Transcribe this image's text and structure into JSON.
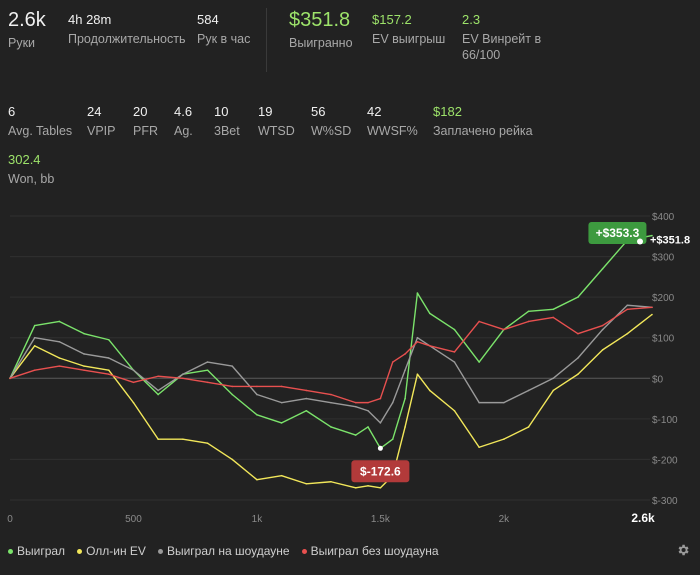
{
  "stats_row1": [
    {
      "id": "hands",
      "value": "2.6k",
      "label": "Руки",
      "style": "big"
    },
    {
      "id": "duration",
      "value": "4h 28m",
      "label": "Продолжительность",
      "style": "normal"
    },
    {
      "id": "hands_per_hour",
      "value": "584",
      "label": "Рук в час",
      "style": "normal"
    },
    {
      "id": "won",
      "value": "$351.8",
      "label": "Выигранно",
      "style": "greenbig"
    },
    {
      "id": "ev_won",
      "value": "$157.2",
      "label": "EV выигрыш",
      "style": "green"
    },
    {
      "id": "ev_winrate",
      "value": "2.3",
      "label": "EV Винрейт в 66/100",
      "style": "green"
    }
  ],
  "stats_row2": [
    {
      "id": "avg_tables",
      "value": "6",
      "label": "Avg. Tables",
      "style": "normal"
    },
    {
      "id": "vpip",
      "value": "24",
      "label": "VPIP",
      "style": "normal"
    },
    {
      "id": "pfr",
      "value": "20",
      "label": "PFR",
      "style": "normal"
    },
    {
      "id": "ag",
      "value": "4.6",
      "label": "Ag.",
      "style": "normal"
    },
    {
      "id": "threebet",
      "value": "10",
      "label": "3Bet",
      "style": "normal"
    },
    {
      "id": "wtsd",
      "value": "19",
      "label": "WTSD",
      "style": "normal"
    },
    {
      "id": "wsd",
      "value": "56",
      "label": "W%SD",
      "style": "normal"
    },
    {
      "id": "wwsf",
      "value": "42",
      "label": "WWSF%",
      "style": "normal"
    },
    {
      "id": "rake",
      "value": "$182",
      "label": "Заплачено рейка",
      "style": "green"
    }
  ],
  "stats_row3": [
    {
      "id": "won_bb",
      "value": "302.4",
      "label": "Won, bb",
      "style": "green"
    }
  ],
  "colors": {
    "won": "#7be36b",
    "allin_ev": "#f2e75a",
    "showdown": "#9a9a9a",
    "nonshowdown": "#e8504f",
    "max_badge": "#3d9a3f",
    "min_badge": "#b23a3a"
  },
  "chart_data": {
    "type": "line",
    "xlim": [
      0,
      2600
    ],
    "ylim": [
      -300,
      400
    ],
    "x_ticks": [
      0,
      500,
      1000,
      1500,
      2000
    ],
    "x_tick_labels": [
      "0",
      "500",
      "1k",
      "1.5k",
      "2k"
    ],
    "x_end_label": "2.6k",
    "y_ticks": [
      -300,
      -200,
      -100,
      0,
      100,
      200,
      300,
      400
    ],
    "y_tick_labels": [
      "$-300",
      "$-200",
      "$-100",
      "$0",
      "$100",
      "$200",
      "$300",
      "$400"
    ],
    "x": [
      0,
      100,
      200,
      300,
      400,
      500,
      600,
      700,
      800,
      900,
      1000,
      1100,
      1200,
      1300,
      1400,
      1450,
      1500,
      1550,
      1600,
      1650,
      1700,
      1800,
      1900,
      2000,
      2100,
      2200,
      2300,
      2400,
      2500,
      2600
    ],
    "series": [
      {
        "name": "Выиграл",
        "key": "won",
        "values": [
          0,
          130,
          140,
          110,
          95,
          20,
          -40,
          10,
          20,
          -40,
          -90,
          -110,
          -80,
          -120,
          -140,
          -120,
          -172.6,
          -150,
          -50,
          210,
          160,
          120,
          40,
          120,
          165,
          170,
          200,
          270,
          340,
          351.8
        ]
      },
      {
        "name": "Олл-ин EV",
        "key": "allin_ev",
        "values": [
          0,
          80,
          50,
          30,
          20,
          -60,
          -150,
          -150,
          -160,
          -200,
          -250,
          -240,
          -260,
          -255,
          -270,
          -265,
          -270,
          -240,
          -120,
          10,
          -30,
          -80,
          -170,
          -150,
          -120,
          -30,
          10,
          70,
          110,
          157.2
        ]
      },
      {
        "name": "Выиграл на шоудауне",
        "key": "showdown",
        "values": [
          0,
          100,
          90,
          60,
          50,
          20,
          -30,
          10,
          40,
          30,
          -40,
          -60,
          -50,
          -60,
          -70,
          -80,
          -110,
          -60,
          20,
          100,
          80,
          40,
          -60,
          -60,
          -30,
          0,
          50,
          120,
          180,
          175
        ]
      },
      {
        "name": "Выиграл без шоудауна",
        "key": "nonshowdown",
        "values": [
          0,
          20,
          30,
          20,
          10,
          -10,
          5,
          0,
          -10,
          -20,
          -20,
          -20,
          -30,
          -40,
          -60,
          -60,
          -50,
          40,
          60,
          90,
          80,
          65,
          140,
          120,
          140,
          150,
          110,
          130,
          170,
          175
        ]
      }
    ],
    "annotations": [
      {
        "text": "+$353.3",
        "x": 2460,
        "y": 353.3,
        "kind": "max"
      },
      {
        "text": "$-172.6",
        "x": 1500,
        "y": -172.6,
        "kind": "min"
      },
      {
        "text": "+$351.8",
        "x": 2600,
        "y": 351.8,
        "kind": "last"
      }
    ]
  },
  "legend_icons": {
    "settings": "gear-icon"
  }
}
